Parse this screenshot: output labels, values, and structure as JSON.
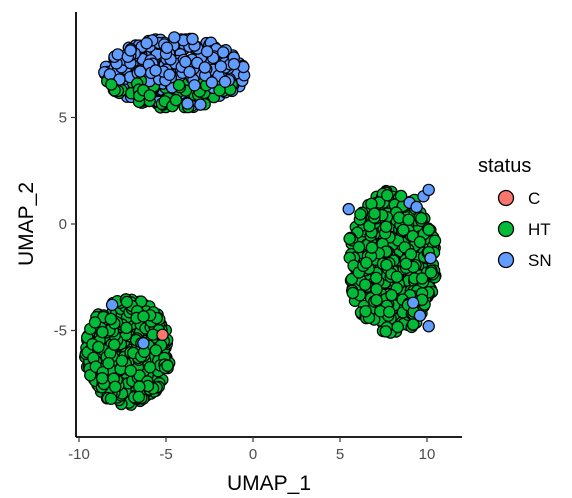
{
  "chart_data": {
    "type": "scatter",
    "title": "",
    "xlabel": "UMAP_1",
    "ylabel": "UMAP_2",
    "xlim": [
      -10.5,
      12
    ],
    "ylim": [
      -9.5,
      10.5
    ],
    "x_ticks": [
      -10,
      -5,
      0,
      5,
      10
    ],
    "y_ticks": [
      -5,
      0,
      5
    ],
    "grid": false,
    "legend": {
      "title": "status",
      "position": "right",
      "entries": [
        {
          "label": "C",
          "color": "#F8766D"
        },
        {
          "label": "HT",
          "color": "#00BA38"
        },
        {
          "label": "SN",
          "color": "#619CFF"
        }
      ]
    },
    "clusters": [
      {
        "center": [
          -4.5,
          7.1
        ],
        "x_range": [
          -8.8,
          -0.5
        ],
        "y_range": [
          5.3,
          8.7
        ],
        "dominant": "SN",
        "also": [
          "HT"
        ]
      },
      {
        "center": [
          8.0,
          -1.8
        ],
        "x_range": [
          5.2,
          10.5
        ],
        "y_range": [
          -5.0,
          1.9
        ],
        "dominant": "HT",
        "also": [
          "SN"
        ]
      },
      {
        "center": [
          -7.2,
          -6.0
        ],
        "x_range": [
          -9.5,
          -4.5
        ],
        "y_range": [
          -8.6,
          -3.5
        ],
        "dominant": "HT",
        "also": [
          "SN",
          "C"
        ]
      }
    ],
    "series": [
      {
        "name": "C",
        "color": "#F8766D",
        "points": [
          [
            -5.2,
            -5.2
          ]
        ]
      },
      {
        "name": "SN",
        "color": "#619CFF",
        "points": [
          [
            -8.1,
            -3.8
          ],
          [
            -6.3,
            -5.6
          ],
          [
            5.5,
            0.7
          ],
          [
            9.0,
            1.0
          ],
          [
            9.8,
            1.3
          ],
          [
            10.1,
            1.6
          ],
          [
            10.2,
            -1.6
          ],
          [
            9.2,
            -3.7
          ],
          [
            9.6,
            -4.3
          ],
          [
            10.1,
            -4.8
          ],
          [
            9.4,
            0.8
          ]
        ]
      }
    ]
  }
}
